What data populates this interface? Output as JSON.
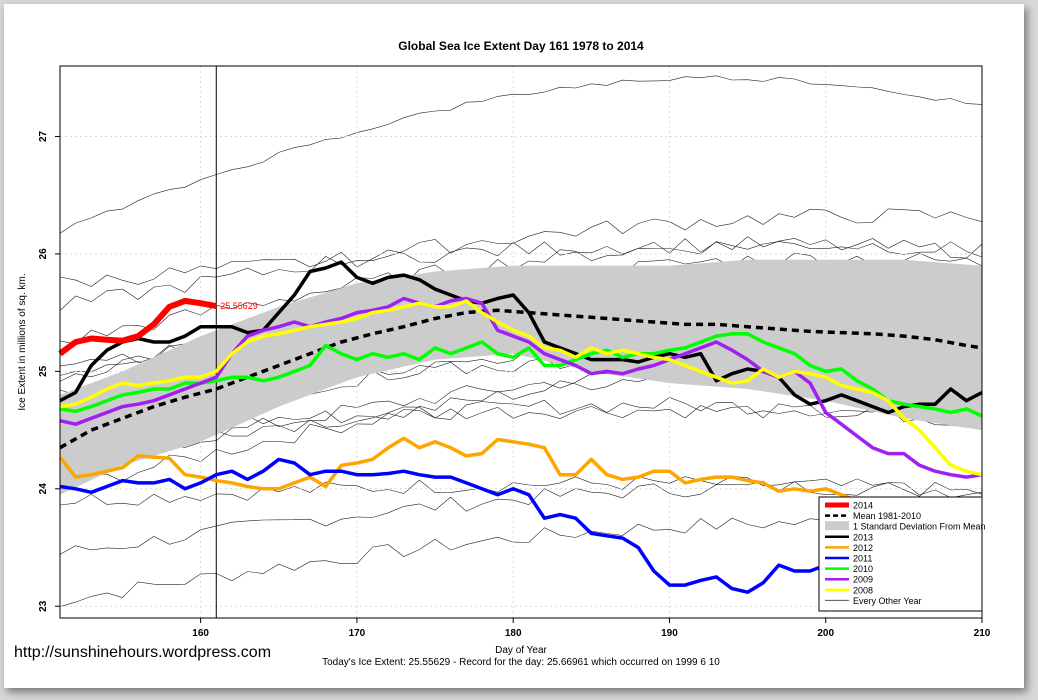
{
  "watermark": "http://sunshinehours.wordpress.com",
  "chart_data": {
    "type": "line",
    "title": "Global Sea Ice Extent Day 161 1978 to 2014",
    "xlabel": "Day of Year",
    "ylabel": "Ice Extent in millions of sq. km.",
    "subtitle": "Today's Ice Extent: 25.55629  - Record for the day: 25.66961 which occurred on 1999 6 10",
    "xlim": [
      151,
      210
    ],
    "ylim": [
      22.9,
      27.6
    ],
    "xticks": [
      160,
      170,
      180,
      190,
      200,
      210
    ],
    "yticks": [
      23,
      24,
      25,
      26,
      27
    ],
    "grid": true,
    "vline_x": 161,
    "current_label": "25.55629",
    "legend_position": "bottom-right",
    "legend": [
      {
        "label": "2014",
        "color": "#ff0000",
        "style": "thick"
      },
      {
        "label": "Mean 1981-2010",
        "color": "#000000",
        "style": "dashed"
      },
      {
        "label": "1 Standard Deviation From Mean",
        "color": "#cccccc",
        "style": "fill"
      },
      {
        "label": "2013",
        "color": "#000000",
        "style": "line"
      },
      {
        "label": "2012",
        "color": "#ffa500",
        "style": "line"
      },
      {
        "label": "2011",
        "color": "#0000ff",
        "style": "line"
      },
      {
        "label": "2010",
        "color": "#00ff00",
        "style": "line"
      },
      {
        "label": "2009",
        "color": "#a020f0",
        "style": "line"
      },
      {
        "label": "2008",
        "color": "#ffff00",
        "style": "line"
      },
      {
        "label": "Every Other Year",
        "color": "#555555",
        "style": "thin"
      }
    ],
    "band": {
      "x": [
        151,
        155,
        160,
        165,
        170,
        175,
        180,
        185,
        190,
        195,
        200,
        205,
        210
      ],
      "upper": [
        24.8,
        25.0,
        25.3,
        25.55,
        25.75,
        25.85,
        25.9,
        25.9,
        25.9,
        25.95,
        25.95,
        25.95,
        25.9
      ],
      "lower": [
        23.95,
        24.2,
        24.4,
        24.7,
        24.95,
        25.1,
        25.15,
        25.0,
        24.9,
        24.85,
        24.75,
        24.6,
        24.5
      ]
    },
    "series": [
      {
        "name": "Mean 1981-2010",
        "color": "#000000",
        "width": 3.5,
        "dash": "7,5",
        "x": [
          151,
          153,
          155,
          157,
          159,
          161,
          163,
          165,
          167,
          169,
          171,
          173,
          175,
          177,
          179,
          181,
          183,
          185,
          187,
          189,
          191,
          193,
          195,
          197,
          199,
          201,
          203,
          205,
          207,
          209,
          210
        ],
        "y": [
          24.35,
          24.5,
          24.6,
          24.7,
          24.78,
          24.85,
          24.95,
          25.05,
          25.15,
          25.25,
          25.32,
          25.38,
          25.45,
          25.5,
          25.52,
          25.5,
          25.48,
          25.46,
          25.44,
          25.42,
          25.4,
          25.4,
          25.38,
          25.36,
          25.34,
          25.33,
          25.32,
          25.3,
          25.27,
          25.22,
          25.2
        ]
      },
      {
        "name": "2013",
        "color": "#000000",
        "width": 3.5,
        "x": [
          151,
          152,
          153,
          154,
          155,
          156,
          157,
          158,
          159,
          160,
          161,
          162,
          163,
          164,
          165,
          166,
          167,
          168,
          169,
          170,
          171,
          172,
          173,
          174,
          175,
          176,
          177,
          178,
          179,
          180,
          181,
          182,
          183,
          184,
          185,
          186,
          187,
          188,
          189,
          190,
          191,
          192,
          193,
          194,
          195,
          196,
          197,
          198,
          199,
          200,
          201,
          202,
          203,
          204,
          205,
          206,
          207,
          208,
          209,
          210
        ],
        "y": [
          24.75,
          24.82,
          25.05,
          25.18,
          25.25,
          25.28,
          25.25,
          25.25,
          25.3,
          25.38,
          25.38,
          25.38,
          25.33,
          25.35,
          25.5,
          25.65,
          25.85,
          25.88,
          25.93,
          25.8,
          25.75,
          25.8,
          25.82,
          25.78,
          25.7,
          25.65,
          25.6,
          25.58,
          25.62,
          25.65,
          25.5,
          25.25,
          25.2,
          25.15,
          25.1,
          25.1,
          25.1,
          25.08,
          25.12,
          25.15,
          25.12,
          25.15,
          24.92,
          24.98,
          25.02,
          25.0,
          24.95,
          24.8,
          24.72,
          24.75,
          24.8,
          24.75,
          24.7,
          24.65,
          24.7,
          24.72,
          24.72,
          24.85,
          24.75,
          24.82
        ]
      },
      {
        "name": "2012",
        "color": "#ffa500",
        "width": 3.5,
        "x": [
          151,
          152,
          153,
          154,
          155,
          156,
          157,
          158,
          159,
          160,
          161,
          162,
          163,
          164,
          165,
          166,
          167,
          168,
          169,
          170,
          171,
          172,
          173,
          174,
          175,
          176,
          177,
          178,
          179,
          180,
          181,
          182,
          183,
          184,
          185,
          186,
          187,
          188,
          189,
          190,
          191,
          192,
          193,
          194,
          195,
          196,
          197,
          198,
          199,
          200,
          201,
          202,
          203,
          204,
          205,
          206,
          207,
          208,
          209,
          210
        ],
        "y": [
          24.27,
          24.1,
          24.12,
          24.15,
          24.18,
          24.28,
          24.27,
          24.26,
          24.12,
          24.1,
          24.07,
          24.05,
          24.02,
          24.0,
          24.0,
          24.05,
          24.1,
          24.02,
          24.2,
          24.22,
          24.25,
          24.35,
          24.43,
          24.35,
          24.4,
          24.35,
          24.28,
          24.3,
          24.42,
          24.4,
          24.38,
          24.35,
          24.12,
          24.12,
          24.25,
          24.12,
          24.08,
          24.1,
          24.15,
          24.15,
          24.05,
          24.08,
          24.1,
          24.1,
          24.07,
          24.05,
          23.98,
          24.0,
          23.98,
          24.0,
          23.95,
          23.9,
          23.88,
          23.85,
          23.9,
          23.9,
          23.92,
          23.9,
          23.72,
          23.72
        ]
      },
      {
        "name": "2011",
        "color": "#0000ff",
        "width": 3.5,
        "x": [
          151,
          152,
          153,
          154,
          155,
          156,
          157,
          158,
          159,
          160,
          161,
          162,
          163,
          164,
          165,
          166,
          167,
          168,
          169,
          170,
          171,
          172,
          173,
          174,
          175,
          176,
          177,
          178,
          179,
          180,
          181,
          182,
          183,
          184,
          185,
          186,
          187,
          188,
          189,
          190,
          191,
          192,
          193,
          194,
          195,
          196,
          197,
          198,
          199,
          200,
          201,
          202,
          203,
          204,
          205,
          206,
          207,
          208,
          209,
          210
        ],
        "y": [
          24.02,
          24.0,
          23.97,
          24.02,
          24.07,
          24.05,
          24.05,
          24.08,
          24.0,
          24.05,
          24.12,
          24.15,
          24.08,
          24.15,
          24.25,
          24.22,
          24.12,
          24.15,
          24.15,
          24.12,
          24.12,
          24.13,
          24.15,
          24.12,
          24.1,
          24.1,
          24.05,
          24.0,
          23.95,
          24.0,
          23.95,
          23.75,
          23.78,
          23.75,
          23.62,
          23.6,
          23.58,
          23.5,
          23.3,
          23.18,
          23.18,
          23.22,
          23.25,
          23.15,
          23.12,
          23.2,
          23.35,
          23.3,
          23.3,
          23.35,
          23.45,
          23.45,
          23.5,
          23.45,
          23.5,
          23.6,
          23.68,
          23.72,
          23.7,
          23.73
        ]
      },
      {
        "name": "2010",
        "color": "#00ff00",
        "width": 3.5,
        "x": [
          151,
          152,
          153,
          154,
          155,
          156,
          157,
          158,
          159,
          160,
          161,
          162,
          163,
          164,
          165,
          166,
          167,
          168,
          169,
          170,
          171,
          172,
          173,
          174,
          175,
          176,
          177,
          178,
          179,
          180,
          181,
          182,
          183,
          184,
          185,
          186,
          187,
          188,
          189,
          190,
          191,
          192,
          193,
          194,
          195,
          196,
          197,
          198,
          199,
          200,
          201,
          202,
          203,
          204,
          205,
          206,
          207,
          208,
          209,
          210
        ],
        "y": [
          24.68,
          24.66,
          24.7,
          24.75,
          24.8,
          24.82,
          24.85,
          24.85,
          24.9,
          24.9,
          24.92,
          24.95,
          24.95,
          24.92,
          24.95,
          25.0,
          25.05,
          25.22,
          25.15,
          25.1,
          25.15,
          25.12,
          25.15,
          25.1,
          25.2,
          25.15,
          25.2,
          25.25,
          25.15,
          25.12,
          25.2,
          25.05,
          25.05,
          25.1,
          25.15,
          25.18,
          25.12,
          25.15,
          25.15,
          25.18,
          25.2,
          25.25,
          25.3,
          25.32,
          25.32,
          25.25,
          25.2,
          25.15,
          25.05,
          25.0,
          25.02,
          24.92,
          24.85,
          24.75,
          24.72,
          24.7,
          24.68,
          24.65,
          24.68,
          24.62
        ]
      },
      {
        "name": "2009",
        "color": "#a020f0",
        "width": 3.5,
        "x": [
          151,
          152,
          153,
          154,
          155,
          156,
          157,
          158,
          159,
          160,
          161,
          162,
          163,
          164,
          165,
          166,
          167,
          168,
          169,
          170,
          171,
          172,
          173,
          174,
          175,
          176,
          177,
          178,
          179,
          180,
          181,
          182,
          183,
          184,
          185,
          186,
          187,
          188,
          189,
          190,
          191,
          192,
          193,
          194,
          195,
          196,
          197,
          198,
          199,
          200,
          201,
          202,
          203,
          204,
          205,
          206,
          207,
          208,
          209,
          210
        ],
        "y": [
          24.58,
          24.55,
          24.6,
          24.65,
          24.7,
          24.72,
          24.75,
          24.8,
          24.85,
          24.9,
          24.95,
          25.15,
          25.3,
          25.35,
          25.38,
          25.42,
          25.38,
          25.42,
          25.45,
          25.5,
          25.52,
          25.55,
          25.62,
          25.58,
          25.55,
          25.6,
          25.62,
          25.58,
          25.35,
          25.3,
          25.25,
          25.15,
          25.1,
          25.05,
          24.98,
          25.0,
          24.98,
          25.02,
          25.05,
          25.1,
          25.15,
          25.2,
          25.25,
          25.18,
          25.1,
          25.0,
          24.95,
          25.0,
          24.9,
          24.65,
          24.55,
          24.45,
          24.35,
          24.3,
          24.3,
          24.2,
          24.15,
          24.12,
          24.1,
          24.12
        ]
      },
      {
        "name": "2008",
        "color": "#ffff00",
        "width": 3.5,
        "x": [
          151,
          152,
          153,
          154,
          155,
          156,
          157,
          158,
          159,
          160,
          161,
          162,
          163,
          164,
          165,
          166,
          167,
          168,
          169,
          170,
          171,
          172,
          173,
          174,
          175,
          176,
          177,
          178,
          179,
          180,
          181,
          182,
          183,
          184,
          185,
          186,
          187,
          188,
          189,
          190,
          191,
          192,
          193,
          194,
          195,
          196,
          197,
          198,
          199,
          200,
          201,
          202,
          203,
          204,
          205,
          206,
          207,
          208,
          209,
          210
        ],
        "y": [
          24.7,
          24.72,
          24.78,
          24.85,
          24.9,
          24.88,
          24.9,
          24.92,
          24.95,
          24.95,
          25.0,
          25.15,
          25.25,
          25.3,
          25.32,
          25.35,
          25.38,
          25.4,
          25.42,
          25.45,
          25.5,
          25.52,
          25.55,
          25.58,
          25.55,
          25.55,
          25.6,
          25.5,
          25.42,
          25.35,
          25.3,
          25.2,
          25.18,
          25.12,
          25.2,
          25.15,
          25.18,
          25.15,
          25.12,
          25.1,
          25.05,
          25.0,
          24.95,
          24.9,
          24.92,
          25.02,
          24.95,
          25.0,
          24.98,
          24.95,
          24.88,
          24.85,
          24.82,
          24.75,
          24.6,
          24.5,
          24.35,
          24.2,
          24.15,
          24.12
        ]
      },
      {
        "name": "2014",
        "color": "#ff0000",
        "width": 6,
        "x": [
          151,
          152,
          153,
          154,
          155,
          156,
          157,
          158,
          159,
          160,
          161
        ],
        "y": [
          25.15,
          25.25,
          25.28,
          25.27,
          25.26,
          25.3,
          25.4,
          25.55,
          25.6,
          25.58,
          25.556
        ]
      }
    ]
  }
}
